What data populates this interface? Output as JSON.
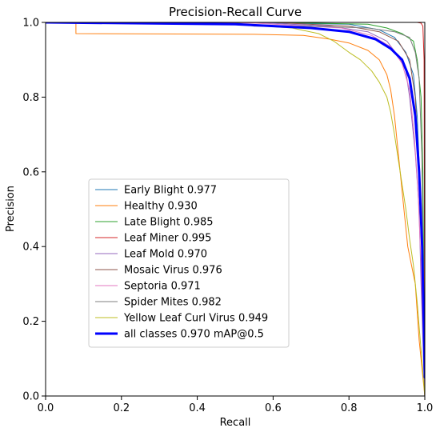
{
  "chart_data": {
    "type": "line",
    "title": "Precision-Recall Curve",
    "xlabel": "Recall",
    "ylabel": "Precision",
    "xlim": [
      0.0,
      1.0
    ],
    "ylim": [
      0.0,
      1.0
    ],
    "xticks": [
      "0.0",
      "0.2",
      "0.4",
      "0.6",
      "0.8",
      "1.0"
    ],
    "yticks": [
      "0.0",
      "0.2",
      "0.4",
      "0.6",
      "0.8",
      "1.0"
    ],
    "grid": false,
    "legend_position": "center-left",
    "series": [
      {
        "name": "Early Blight 0.977",
        "color": "#1f77b4",
        "width": 1,
        "points": [
          [
            0,
            1
          ],
          [
            0.5,
            1
          ],
          [
            0.8,
            0.995
          ],
          [
            0.88,
            0.98
          ],
          [
            0.92,
            0.96
          ],
          [
            0.95,
            0.92
          ],
          [
            0.97,
            0.86
          ],
          [
            0.98,
            0.75
          ],
          [
            0.99,
            0.5
          ],
          [
            0.995,
            0.3
          ],
          [
            1.0,
            0.0
          ]
        ]
      },
      {
        "name": "Healthy 0.930",
        "color": "#ff7f0e",
        "width": 1,
        "points": [
          [
            0,
            1
          ],
          [
            0.08,
            1
          ],
          [
            0.08,
            0.97
          ],
          [
            0.55,
            0.968
          ],
          [
            0.68,
            0.965
          ],
          [
            0.75,
            0.955
          ],
          [
            0.8,
            0.945
          ],
          [
            0.85,
            0.925
          ],
          [
            0.88,
            0.9
          ],
          [
            0.9,
            0.86
          ],
          [
            0.91,
            0.82
          ],
          [
            0.92,
            0.75
          ],
          [
            0.935,
            0.6
          ],
          [
            0.945,
            0.5
          ],
          [
            0.955,
            0.4
          ],
          [
            0.965,
            0.35
          ],
          [
            0.975,
            0.3
          ],
          [
            0.985,
            0.15
          ],
          [
            1.0,
            0.0
          ]
        ]
      },
      {
        "name": "Late Blight 0.985",
        "color": "#2ca02c",
        "width": 1,
        "points": [
          [
            0,
            1
          ],
          [
            0.6,
            1
          ],
          [
            0.85,
            0.995
          ],
          [
            0.9,
            0.985
          ],
          [
            0.94,
            0.97
          ],
          [
            0.97,
            0.95
          ],
          [
            0.98,
            0.9
          ],
          [
            0.99,
            0.8
          ],
          [
            0.995,
            0.6
          ],
          [
            1.0,
            0.0
          ]
        ]
      },
      {
        "name": "Leaf Miner 0.995",
        "color": "#d62728",
        "width": 1,
        "points": [
          [
            0,
            1
          ],
          [
            0.98,
            1
          ],
          [
            0.99,
            0.998
          ],
          [
            0.995,
            0.99
          ],
          [
            0.998,
            0.9
          ],
          [
            1.0,
            0.0
          ]
        ]
      },
      {
        "name": "Leaf Mold 0.970",
        "color": "#9467bd",
        "width": 1,
        "points": [
          [
            0,
            1
          ],
          [
            0.55,
            1
          ],
          [
            0.75,
            0.99
          ],
          [
            0.85,
            0.975
          ],
          [
            0.9,
            0.95
          ],
          [
            0.93,
            0.91
          ],
          [
            0.95,
            0.87
          ],
          [
            0.96,
            0.8
          ],
          [
            0.975,
            0.65
          ],
          [
            0.985,
            0.5
          ],
          [
            0.99,
            0.3
          ],
          [
            1.0,
            0.0
          ]
        ]
      },
      {
        "name": "Mosaic Virus 0.976",
        "color": "#8c564b",
        "width": 1,
        "points": [
          [
            0,
            1
          ],
          [
            0.6,
            1
          ],
          [
            0.8,
            0.99
          ],
          [
            0.88,
            0.975
          ],
          [
            0.93,
            0.95
          ],
          [
            0.96,
            0.9
          ],
          [
            0.975,
            0.8
          ],
          [
            0.985,
            0.6
          ],
          [
            0.992,
            0.4
          ],
          [
            1.0,
            0.0
          ]
        ]
      },
      {
        "name": "Septoria 0.971",
        "color": "#e377c2",
        "width": 1,
        "points": [
          [
            0,
            1
          ],
          [
            0.55,
            0.998
          ],
          [
            0.78,
            0.985
          ],
          [
            0.86,
            0.965
          ],
          [
            0.91,
            0.935
          ],
          [
            0.94,
            0.89
          ],
          [
            0.96,
            0.82
          ],
          [
            0.972,
            0.7
          ],
          [
            0.982,
            0.55
          ],
          [
            0.99,
            0.35
          ],
          [
            1.0,
            0.0
          ]
        ]
      },
      {
        "name": "Spider Mites 0.982",
        "color": "#7f7f7f",
        "width": 1,
        "points": [
          [
            0,
            1
          ],
          [
            0.5,
            1
          ],
          [
            0.55,
            0.99
          ],
          [
            0.7,
            0.99
          ],
          [
            0.85,
            0.985
          ],
          [
            0.92,
            0.975
          ],
          [
            0.96,
            0.96
          ],
          [
            0.975,
            0.92
          ],
          [
            0.985,
            0.85
          ],
          [
            0.992,
            0.65
          ],
          [
            1.0,
            0.0
          ]
        ]
      },
      {
        "name": "Yellow Leaf Curl Virus 0.949",
        "color": "#bcbd22",
        "width": 1,
        "points": [
          [
            0,
            1
          ],
          [
            0.5,
            0.995
          ],
          [
            0.65,
            0.985
          ],
          [
            0.72,
            0.97
          ],
          [
            0.76,
            0.95
          ],
          [
            0.8,
            0.92
          ],
          [
            0.83,
            0.9
          ],
          [
            0.86,
            0.87
          ],
          [
            0.88,
            0.84
          ],
          [
            0.9,
            0.8
          ],
          [
            0.91,
            0.76
          ],
          [
            0.92,
            0.7
          ],
          [
            0.935,
            0.6
          ],
          [
            0.95,
            0.5
          ],
          [
            0.96,
            0.42
          ],
          [
            0.97,
            0.35
          ],
          [
            0.98,
            0.25
          ],
          [
            1.0,
            0.0
          ]
        ]
      },
      {
        "name": "all classes 0.970 mAP@0.5",
        "color": "#0000ff",
        "width": 3,
        "points": [
          [
            0,
            1
          ],
          [
            0.5,
            0.995
          ],
          [
            0.7,
            0.985
          ],
          [
            0.8,
            0.975
          ],
          [
            0.87,
            0.955
          ],
          [
            0.91,
            0.93
          ],
          [
            0.94,
            0.9
          ],
          [
            0.96,
            0.85
          ],
          [
            0.975,
            0.75
          ],
          [
            0.985,
            0.6
          ],
          [
            0.993,
            0.4
          ],
          [
            1.0,
            0.05
          ]
        ]
      }
    ]
  }
}
